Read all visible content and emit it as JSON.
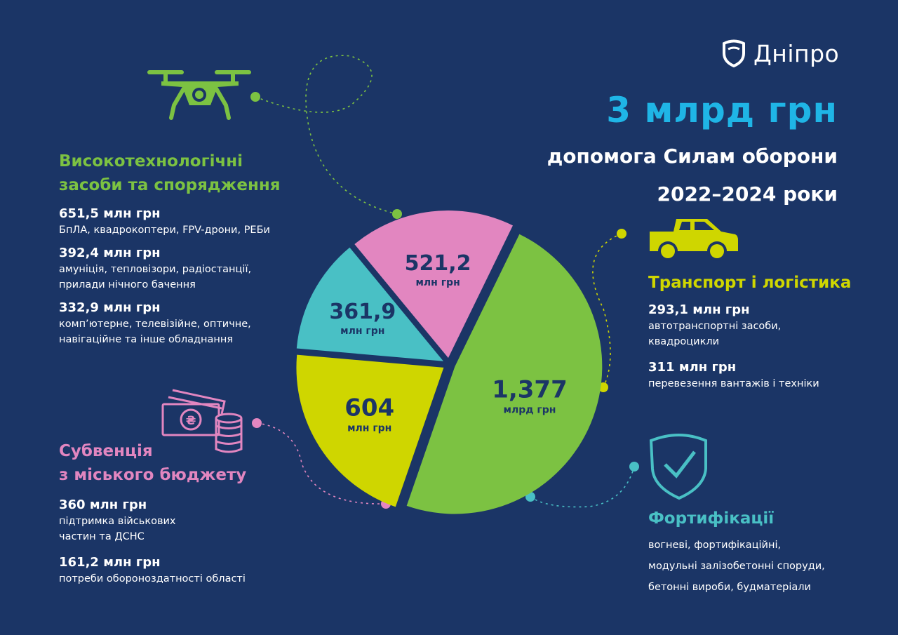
{
  "logo": {
    "text": "Дніпро"
  },
  "headline": {
    "amount": "3 млрд грн",
    "line1": "допомога Силам оборони",
    "line2": "2022–2024 роки"
  },
  "colors": {
    "background": "#1b3566",
    "hitech": "#7cc242",
    "transport": "#cfd600",
    "fortifications": "#49c0c5",
    "subvention": "#e286c0",
    "headline": "#1fb5e6",
    "label": "#1b3566"
  },
  "categories": {
    "hitech": {
      "title_line1": "Високотехнологічні",
      "title_line2": "засоби та спорядження",
      "items": [
        {
          "amount": "651,5 млн грн",
          "desc1": "БпЛА, квадрокоптери, FPV-дрони, РЕБи",
          "desc2": ""
        },
        {
          "amount": "392,4 млн грн",
          "desc1": "амуніція, тепловізори, радіостанції,",
          "desc2": "прилади  нічного бачення"
        },
        {
          "amount": "332,9 млн грн",
          "desc1": "комп’ютерне, телевізійне, оптичне,",
          "desc2": "навігаційне та інше обладнання"
        }
      ],
      "icon": "drone-icon"
    },
    "transport": {
      "title": "Транспорт і логістика",
      "items": [
        {
          "amount": "293,1 млн грн",
          "desc1": "автотранспортні засоби,",
          "desc2": "квадроцикли"
        },
        {
          "amount": "311 млн грн",
          "desc1": "перевезення вантажів і техніки",
          "desc2": ""
        }
      ],
      "icon": "pickup-truck-icon"
    },
    "subvention": {
      "title_line1": "Субвенція",
      "title_line2": "з міського бюджету",
      "items": [
        {
          "amount": "360 млн грн",
          "desc1": "підтримка військових",
          "desc2": "частин та ДСНС"
        },
        {
          "amount": "161,2 млн грн",
          "desc1": "потреби обороноздатності області",
          "desc2": ""
        }
      ],
      "icon": "money-coins-icon"
    },
    "fortifications": {
      "title": "Фортифікації",
      "desc": [
        "вогневі, фортифікаційні,",
        "модульні залізобетонні споруди,",
        "бетонні вироби, будматеріали"
      ],
      "icon": "shield-check-icon"
    }
  },
  "chart_data": {
    "type": "pie",
    "unit": "млн грн",
    "slices": [
      {
        "key": "hitech",
        "value": 1377,
        "label": "1,377",
        "unit_label": "млрд грн",
        "color": "#7cc242"
      },
      {
        "key": "transport",
        "value": 604,
        "label": "604",
        "unit_label": "млн грн",
        "color": "#cfd600"
      },
      {
        "key": "fortifications",
        "value": 361.9,
        "label": "361,9",
        "unit_label": "млн грн",
        "color": "#49c0c5"
      },
      {
        "key": "subvention",
        "value": 521.2,
        "label": "521,2",
        "unit_label": "млн грн",
        "color": "#e286c0"
      }
    ]
  }
}
